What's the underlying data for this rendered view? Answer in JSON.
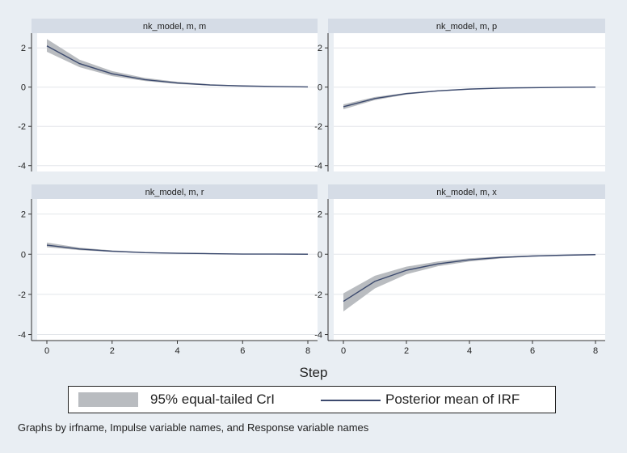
{
  "chart_data": {
    "type": "line",
    "layout": "2x2 small multiples",
    "x_title": "Step",
    "x_ticks": [
      0,
      2,
      4,
      6,
      8
    ],
    "xlim": [
      0,
      8
    ],
    "y_ticks": [
      2,
      0,
      -2,
      -4
    ],
    "ylim": [
      -4.3,
      2.75
    ],
    "grid": true,
    "colors": {
      "band": "#b9bcc0",
      "line": "#3c4a6e",
      "panel_bg": "#ffffff",
      "strip_bg": "#d5dce6",
      "page_bg": "#e9eef3"
    },
    "x": [
      0,
      1,
      2,
      3,
      4,
      5,
      6,
      7,
      8
    ],
    "panels": [
      {
        "title": "nk_model, m, m",
        "mean": [
          2.1,
          1.2,
          0.68,
          0.38,
          0.21,
          0.11,
          0.06,
          0.03,
          0.01
        ],
        "lower": [
          1.8,
          1.02,
          0.56,
          0.31,
          0.16,
          0.08,
          0.04,
          0.02,
          0.0
        ],
        "upper": [
          2.45,
          1.4,
          0.82,
          0.47,
          0.27,
          0.15,
          0.08,
          0.04,
          0.02
        ]
      },
      {
        "title": "nk_model, m, p",
        "mean": [
          -1.0,
          -0.58,
          -0.33,
          -0.19,
          -0.1,
          -0.05,
          -0.03,
          -0.01,
          0.0
        ],
        "lower": [
          -1.13,
          -0.66,
          -0.38,
          -0.22,
          -0.12,
          -0.06,
          -0.03,
          -0.02,
          -0.01
        ],
        "upper": [
          -0.88,
          -0.5,
          -0.29,
          -0.16,
          -0.08,
          -0.04,
          -0.02,
          -0.01,
          0.0
        ]
      },
      {
        "title": "nk_model, m, r",
        "mean": [
          0.45,
          0.26,
          0.15,
          0.08,
          0.05,
          0.03,
          0.01,
          0.01,
          0.0
        ],
        "lower": [
          0.35,
          0.2,
          0.11,
          0.06,
          0.03,
          0.02,
          0.01,
          0.0,
          0.0
        ],
        "upper": [
          0.58,
          0.33,
          0.19,
          0.11,
          0.06,
          0.03,
          0.02,
          0.01,
          0.0
        ]
      },
      {
        "title": "nk_model, m, x",
        "mean": [
          -2.35,
          -1.35,
          -0.8,
          -0.48,
          -0.28,
          -0.16,
          -0.09,
          -0.05,
          -0.02
        ],
        "lower": [
          -2.85,
          -1.7,
          -1.0,
          -0.6,
          -0.36,
          -0.21,
          -0.12,
          -0.07,
          -0.03
        ],
        "upper": [
          -1.95,
          -1.07,
          -0.62,
          -0.36,
          -0.2,
          -0.11,
          -0.06,
          -0.03,
          -0.01
        ]
      }
    ],
    "legend": [
      {
        "label": "95% equal-tailed CrI",
        "kind": "band"
      },
      {
        "label": "Posterior mean of IRF",
        "kind": "line"
      }
    ],
    "legend_position": "bottom",
    "note": "Graphs by irfname, Impulse variable names, and Response variable names"
  }
}
